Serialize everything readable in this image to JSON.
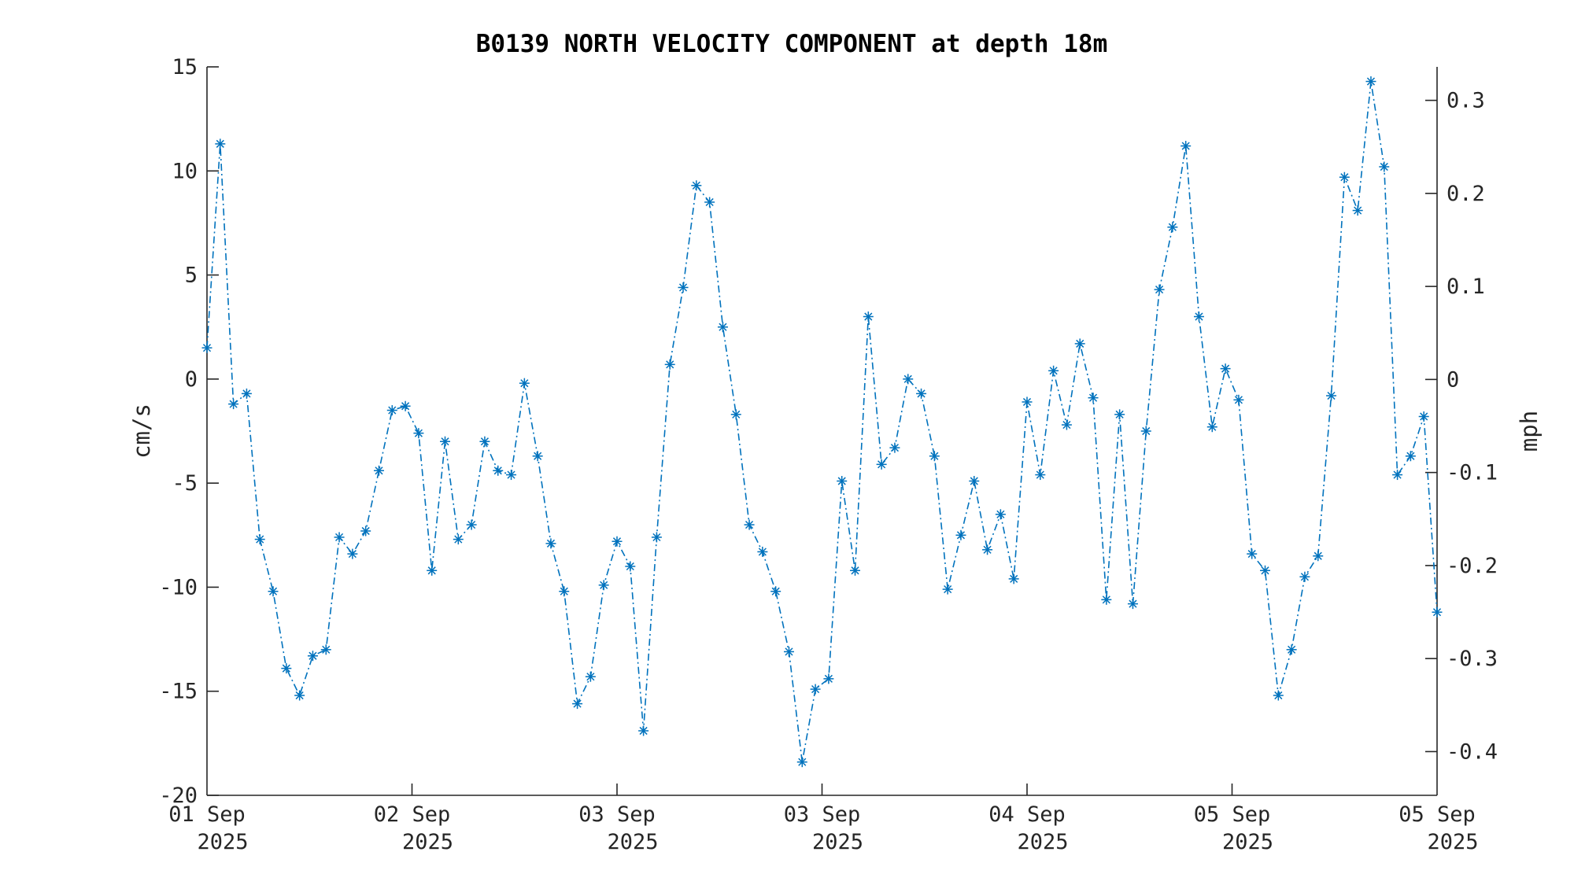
{
  "chart_data": {
    "type": "line",
    "title": "B0139 NORTH VELOCITY COMPONENT at depth 18m",
    "ylabel": "cm/s",
    "ylabel_right": "mph",
    "ylim": [
      -20,
      15
    ],
    "ylim_right_mph": [
      -0.447,
      0.336
    ],
    "yticks": [
      15,
      10,
      5,
      0,
      -5,
      -10,
      -15,
      -20
    ],
    "yticks_right": [
      "0.3",
      "0.2",
      "0.1",
      "0",
      "-0.1",
      "-0.2",
      "-0.3",
      "-0.4"
    ],
    "xtick_labels": [
      {
        "line1": "01 Sep",
        "line2": "2025"
      },
      {
        "line1": "02 Sep",
        "line2": "2025"
      },
      {
        "line1": "03 Sep",
        "line2": "2025"
      },
      {
        "line1": "03 Sep",
        "line2": "2025"
      },
      {
        "line1": "04 Sep",
        "line2": "2025"
      },
      {
        "line1": "05 Sep",
        "line2": "2025"
      },
      {
        "line1": "05 Sep",
        "line2": "2025"
      }
    ],
    "line_color": "#0072BD",
    "line_style": "dash-dot",
    "marker": "asterisk",
    "grid": false,
    "series": [
      {
        "values": [
          1.5,
          11.3,
          -1.2,
          -0.7,
          -7.7,
          -10.2,
          -13.9,
          -15.2,
          -13.3,
          -13.0,
          -7.6,
          -8.4,
          -7.3,
          -4.4,
          -1.5,
          -1.3,
          -2.6,
          -9.2,
          -3.0,
          -7.7,
          -7.0,
          -3.0,
          -4.4,
          -4.6,
          -0.2,
          -3.7,
          -7.9,
          -10.2,
          -15.6,
          -14.3,
          -9.9,
          -7.8,
          -9.0,
          -16.9,
          -7.6,
          0.7,
          4.4,
          9.3,
          8.5,
          2.5,
          -1.7,
          -7.0,
          -8.3,
          -10.2,
          -13.1,
          -18.4,
          -14.9,
          -14.4,
          -4.9,
          -9.2,
          3.0,
          -4.1,
          -3.3,
          0.0,
          -0.7,
          -3.7,
          -10.1,
          -7.5,
          -4.9,
          -8.2,
          -6.5,
          -9.6,
          -1.1,
          -4.6,
          0.4,
          -2.2,
          1.7,
          -0.9,
          -10.6,
          -1.7,
          -10.8,
          -2.5,
          4.3,
          7.3,
          11.2,
          3.0,
          -2.3,
          0.5,
          -1.0,
          -8.4,
          -9.2,
          -15.2,
          -13.0,
          -9.5,
          -8.5,
          -0.8,
          9.7,
          8.1,
          14.3,
          10.2,
          -4.6,
          -3.7,
          -1.8,
          -11.2
        ]
      }
    ]
  }
}
